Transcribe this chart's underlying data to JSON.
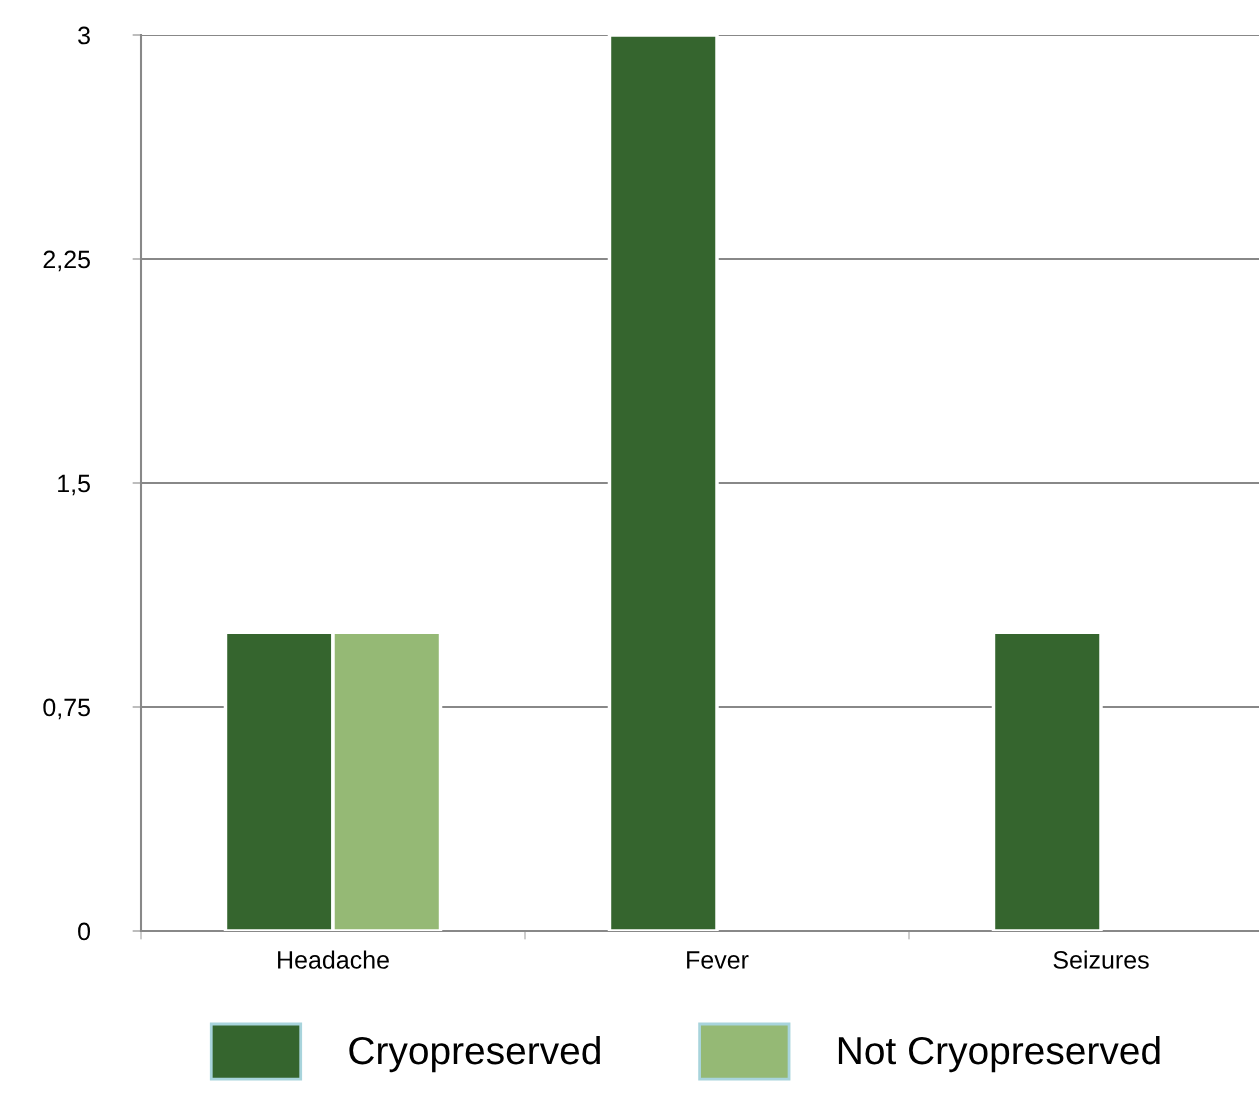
{
  "chart_data": {
    "type": "bar",
    "categories": [
      "Headache",
      "Fever",
      "Seizures"
    ],
    "series": [
      {
        "name": "Cryopreserved",
        "color": "#35652e",
        "values": [
          1,
          3,
          1
        ]
      },
      {
        "name": "Not Cryopreserved",
        "color": "#95b975",
        "values": [
          1,
          null,
          null
        ]
      }
    ],
    "ylim": [
      0,
      3
    ],
    "yticks": [
      0,
      {
        "value": 0.75,
        "label": "0,75"
      },
      {
        "value": 1.5,
        "label": "1,5"
      },
      {
        "value": 2.25,
        "label": "2,25"
      },
      3
    ],
    "grid": "y",
    "legend": "bottom"
  }
}
